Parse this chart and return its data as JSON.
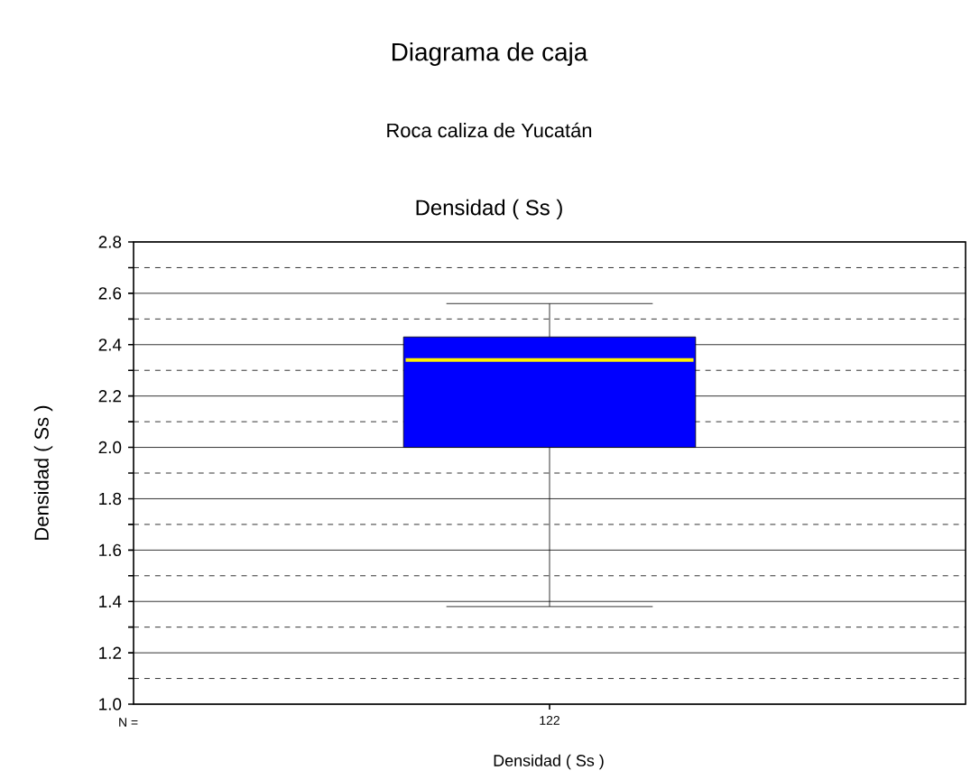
{
  "chart_data": {
    "type": "box",
    "title": "Diagrama de caja",
    "subtitle": "Roca caliza de Yucatán",
    "annotations": [
      "Densidad ( Ss )",
      "N ="
    ],
    "xlabel": "Densidad ( Ss )",
    "ylabel": "Densidad  ( Ss )",
    "categories": [
      "122"
    ],
    "series": [
      {
        "color": "#0000ff",
        "boxes": [
          {
            "low": 1.38,
            "q1": 2.0,
            "median": 2.34,
            "q3": 2.43,
            "high": 2.56
          }
        ]
      }
    ],
    "ylim": [
      1.0,
      2.8
    ],
    "yticks": [
      {
        "value": 1.0,
        "label": "1.0"
      },
      1.2,
      1.4,
      1.6,
      1.8,
      {
        "value": 2.0,
        "label": "2.0"
      },
      2.2,
      2.4,
      2.6,
      2.8
    ],
    "grid": "y"
  }
}
